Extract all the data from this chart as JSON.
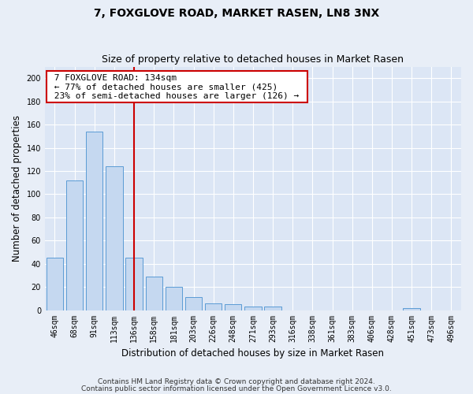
{
  "title": "7, FOXGLOVE ROAD, MARKET RASEN, LN8 3NX",
  "subtitle": "Size of property relative to detached houses in Market Rasen",
  "xlabel": "Distribution of detached houses by size in Market Rasen",
  "ylabel": "Number of detached properties",
  "categories": [
    "46sqm",
    "68sqm",
    "91sqm",
    "113sqm",
    "136sqm",
    "158sqm",
    "181sqm",
    "203sqm",
    "226sqm",
    "248sqm",
    "271sqm",
    "293sqm",
    "316sqm",
    "338sqm",
    "361sqm",
    "383sqm",
    "406sqm",
    "428sqm",
    "451sqm",
    "473sqm",
    "496sqm"
  ],
  "values": [
    45,
    112,
    154,
    124,
    45,
    29,
    20,
    11,
    6,
    5,
    3,
    3,
    0,
    0,
    0,
    0,
    0,
    0,
    2,
    0,
    0
  ],
  "bar_color": "#c5d8f0",
  "bar_edge_color": "#5b9bd5",
  "vline_index": 4,
  "vline_color": "#cc0000",
  "ylim": [
    0,
    210
  ],
  "yticks": [
    0,
    20,
    40,
    60,
    80,
    100,
    120,
    140,
    160,
    180,
    200
  ],
  "annotation_title": "7 FOXGLOVE ROAD: 134sqm",
  "annotation_line1": "← 77% of detached houses are smaller (425)",
  "annotation_line2": "23% of semi-detached houses are larger (126) →",
  "annotation_box_color": "#cc0000",
  "footer_line1": "Contains HM Land Registry data © Crown copyright and database right 2024.",
  "footer_line2": "Contains public sector information licensed under the Open Government Licence v3.0.",
  "background_color": "#e8eef7",
  "plot_bg_color": "#dce6f5",
  "grid_color": "#ffffff",
  "title_fontsize": 10,
  "subtitle_fontsize": 9,
  "tick_fontsize": 7,
  "label_fontsize": 8.5,
  "footer_fontsize": 6.5
}
